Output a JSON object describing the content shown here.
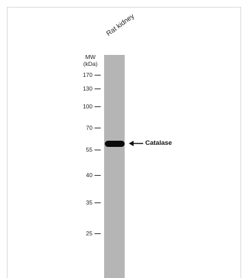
{
  "blot": {
    "sample_label": "Rat kidney",
    "mw_header_line1": "MW",
    "mw_header_line2": "(kDa)",
    "markers": [
      {
        "label": "170"
      },
      {
        "label": "130"
      },
      {
        "label": "100"
      },
      {
        "label": "70"
      },
      {
        "label": "55"
      },
      {
        "label": "40"
      },
      {
        "label": "35"
      },
      {
        "label": "25"
      }
    ],
    "target_label": "Catalase",
    "colors": {
      "lane": "#b5b5b5",
      "band": "#0b0b0b",
      "text": "#222222"
    }
  }
}
